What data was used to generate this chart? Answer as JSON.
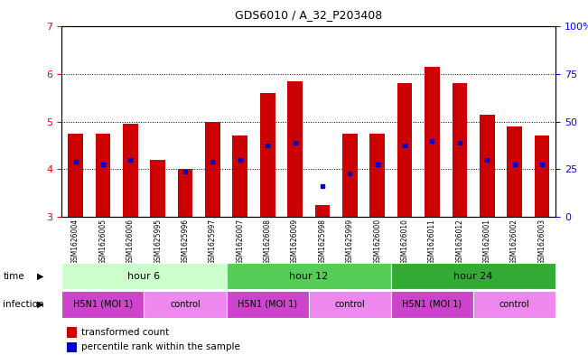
{
  "title": "GDS6010 / A_32_P203408",
  "samples": [
    "GSM1626004",
    "GSM1626005",
    "GSM1626006",
    "GSM1625995",
    "GSM1625996",
    "GSM1625997",
    "GSM1626007",
    "GSM1626008",
    "GSM1626009",
    "GSM1625998",
    "GSM1625999",
    "GSM1626000",
    "GSM1626010",
    "GSM1626011",
    "GSM1626012",
    "GSM1626001",
    "GSM1626002",
    "GSM1626003"
  ],
  "bar_values": [
    4.75,
    4.75,
    4.95,
    4.2,
    4.0,
    5.0,
    4.7,
    5.6,
    5.85,
    3.25,
    4.75,
    4.75,
    5.82,
    6.15,
    5.82,
    5.15,
    4.9,
    4.7
  ],
  "blue_markers": [
    4.15,
    4.1,
    4.2,
    null,
    3.95,
    4.15,
    4.2,
    4.5,
    4.55,
    3.65,
    3.9,
    4.1,
    4.5,
    4.6,
    4.55,
    4.2,
    4.1,
    4.1
  ],
  "ylim": [
    3,
    7
  ],
  "yticks": [
    3,
    4,
    5,
    6,
    7
  ],
  "y2ticks": [
    0,
    25,
    50,
    75,
    100
  ],
  "y2ticklabels": [
    "0",
    "25",
    "50",
    "75",
    "100%"
  ],
  "bar_color": "#cc0000",
  "blue_color": "#0000cc",
  "xtick_bg": "#cccccc",
  "time_groups": [
    {
      "label": "hour 6",
      "start": 0,
      "end": 6,
      "color": "#ccffcc"
    },
    {
      "label": "hour 12",
      "start": 6,
      "end": 12,
      "color": "#55cc55"
    },
    {
      "label": "hour 24",
      "start": 12,
      "end": 18,
      "color": "#33aa33"
    }
  ],
  "infection_groups": [
    {
      "label": "H5N1 (MOI 1)",
      "start": 0,
      "end": 3,
      "color": "#cc44cc"
    },
    {
      "label": "control",
      "start": 3,
      "end": 6,
      "color": "#ee88ee"
    },
    {
      "label": "H5N1 (MOI 1)",
      "start": 6,
      "end": 9,
      "color": "#cc44cc"
    },
    {
      "label": "control",
      "start": 9,
      "end": 12,
      "color": "#ee88ee"
    },
    {
      "label": "H5N1 (MOI 1)",
      "start": 12,
      "end": 15,
      "color": "#cc44cc"
    },
    {
      "label": "control",
      "start": 15,
      "end": 18,
      "color": "#ee88ee"
    }
  ],
  "legend_items": [
    {
      "color": "#cc0000",
      "label": "transformed count"
    },
    {
      "color": "#0000cc",
      "label": "percentile rank within the sample"
    }
  ]
}
